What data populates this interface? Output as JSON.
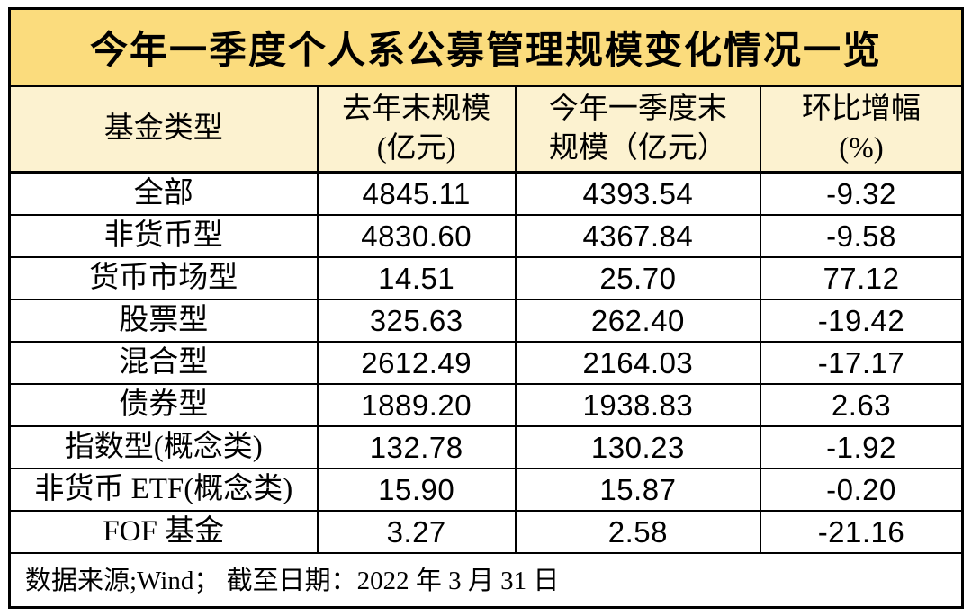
{
  "colors": {
    "title_bg": "#FBDC7D",
    "header_bg": "#FCF2D0",
    "row_bg": "#FFFFFF",
    "border": "#000000",
    "text": "#000000"
  },
  "table": {
    "title": "今年一季度个人系公募管理规模变化情况一览",
    "columns": [
      {
        "line1": "基金类型",
        "line2": ""
      },
      {
        "line1": "去年末规模",
        "line2": "(亿元)"
      },
      {
        "line1": "今年一季度末",
        "line2": "规模（亿元）"
      },
      {
        "line1": "环比增幅",
        "line2": "(%)"
      }
    ],
    "rows": [
      {
        "fund_type": "全部",
        "last_year_end": "4845.11",
        "q1_end": "4393.54",
        "qoq_pct": "-9.32"
      },
      {
        "fund_type": "非货币型",
        "last_year_end": "4830.60",
        "q1_end": "4367.84",
        "qoq_pct": "-9.58"
      },
      {
        "fund_type": "货币市场型",
        "last_year_end": "14.51",
        "q1_end": "25.70",
        "qoq_pct": "77.12"
      },
      {
        "fund_type": "股票型",
        "last_year_end": "325.63",
        "q1_end": "262.40",
        "qoq_pct": "-19.42"
      },
      {
        "fund_type": "混合型",
        "last_year_end": "2612.49",
        "q1_end": "2164.03",
        "qoq_pct": "-17.17"
      },
      {
        "fund_type": "债券型",
        "last_year_end": "1889.20",
        "q1_end": "1938.83",
        "qoq_pct": "2.63"
      },
      {
        "fund_type": "指数型(概念类)",
        "last_year_end": "132.78",
        "q1_end": "130.23",
        "qoq_pct": "-1.92"
      },
      {
        "fund_type": "非货币 ETF(概念类)",
        "last_year_end": "15.90",
        "q1_end": "15.87",
        "qoq_pct": "-0.20"
      },
      {
        "fund_type": "FOF 基金",
        "last_year_end": "3.27",
        "q1_end": "2.58",
        "qoq_pct": "-21.16"
      }
    ],
    "footer": "数据来源;Wind； 截至日期：2022 年 3 月 31 日"
  },
  "chart_data": {
    "type": "table",
    "title": "今年一季度个人系公募管理规模变化情况一览",
    "columns": [
      "基金类型",
      "去年末规模(亿元)",
      "今年一季度末规模（亿元）",
      "环比增幅(%)"
    ],
    "rows": [
      [
        "全部",
        4845.11,
        4393.54,
        -9.32
      ],
      [
        "非货币型",
        4830.6,
        4367.84,
        -9.58
      ],
      [
        "货币市场型",
        14.51,
        25.7,
        77.12
      ],
      [
        "股票型",
        325.63,
        262.4,
        -19.42
      ],
      [
        "混合型",
        2612.49,
        2164.03,
        -17.17
      ],
      [
        "债券型",
        1889.2,
        1938.83,
        2.63
      ],
      [
        "指数型(概念类)",
        132.78,
        130.23,
        -1.92
      ],
      [
        "非货币 ETF(概念类)",
        15.9,
        15.87,
        -0.2
      ],
      [
        "FOF 基金",
        3.27,
        2.58,
        -21.16
      ]
    ],
    "note": "数据来源;Wind； 截至日期：2022 年 3 月 31 日"
  }
}
